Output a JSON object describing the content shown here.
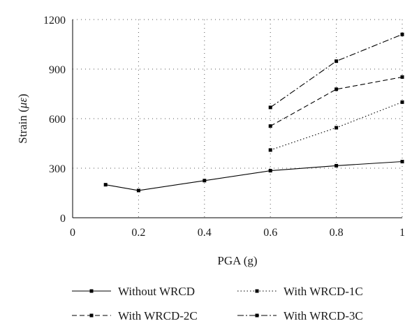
{
  "chart_data": {
    "type": "line",
    "title": "",
    "xlabel": "PGA (g)",
    "ylabel": "Strain (με)",
    "ylabel_parts": {
      "prefix": "Strain (",
      "unit": "με",
      "suffix": ")"
    },
    "xlim": [
      0,
      1
    ],
    "ylim": [
      0,
      1200
    ],
    "xticks": [
      0,
      0.2,
      0.4,
      0.6,
      0.8,
      1
    ],
    "xtick_labels": [
      "0",
      "0.2",
      "0.4",
      "0.6",
      "0.8",
      "1"
    ],
    "yticks": [
      0,
      300,
      600,
      900,
      1200
    ],
    "ytick_labels": [
      "0",
      "300",
      "600",
      "900",
      "1200"
    ],
    "grid": true,
    "legend_placement": "bottom",
    "series": [
      {
        "name": "Without WRCD",
        "dash": "solid",
        "x": [
          0.1,
          0.2,
          0.4,
          0.6,
          0.8,
          1.0
        ],
        "y": [
          200,
          165,
          225,
          285,
          315,
          340
        ]
      },
      {
        "name": "With WRCD-1C",
        "dash": "dotted",
        "x": [
          0.6,
          0.8,
          1.0
        ],
        "y": [
          410,
          545,
          700
        ]
      },
      {
        "name": "With WRCD-2C",
        "dash": "dashed",
        "x": [
          0.6,
          0.8,
          1.0
        ],
        "y": [
          555,
          778,
          852
        ]
      },
      {
        "name": "With WRCD-3C",
        "dash": "dashdot",
        "x": [
          0.6,
          0.8,
          1.0
        ],
        "y": [
          668,
          948,
          1110
        ]
      }
    ]
  }
}
